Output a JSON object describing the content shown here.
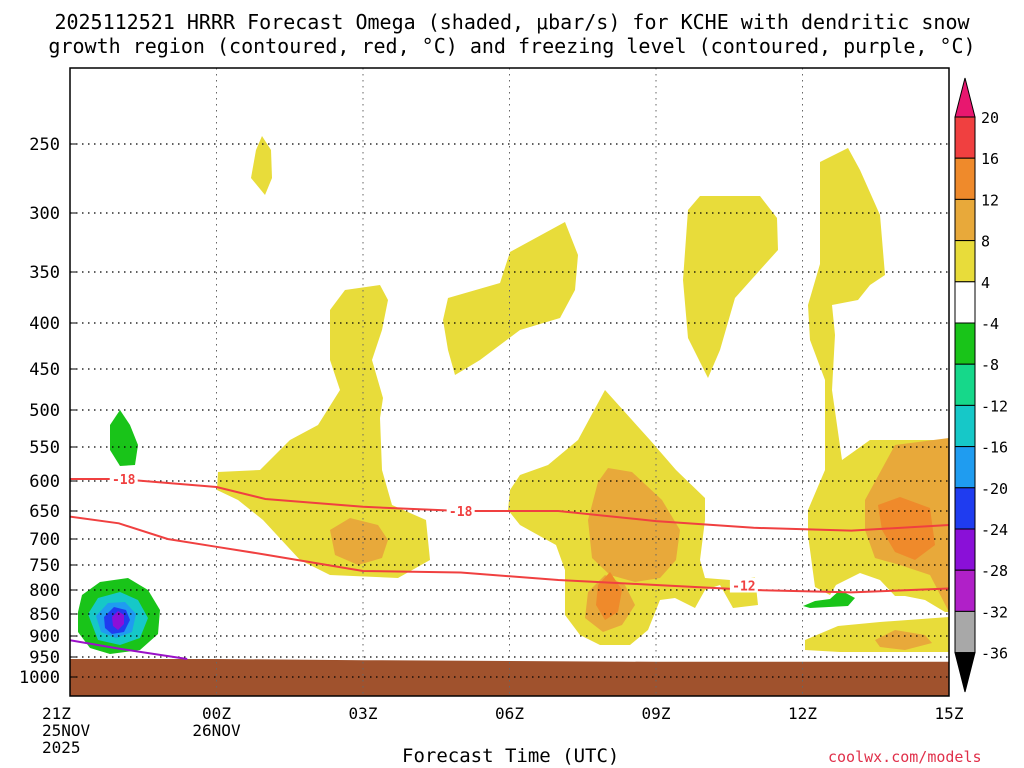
{
  "title": {
    "line1": "2025112521 HRRR Forecast Omega (shaded, μbar/s) for KCHE with dendritic snow",
    "line2": "growth region (contoured, red, °C) and freezing level (contoured, purple, °C)"
  },
  "xlabel": "Forecast Time (UTC)",
  "credit": "coolwx.com/models",
  "chart_data": {
    "type": "heatmap",
    "title": "2025112521 HRRR Forecast Omega (shaded, μbar/s) for KCHE with dendritic snow growth region (contoured, red, °C) and freezing level (contoured, purple, °C)",
    "xlabel": "Forecast Time (UTC)",
    "ylabel": "",
    "x_range_hours": [
      0,
      18
    ],
    "x_ticks": [
      {
        "h": 0,
        "lines": [
          "21Z",
          "25NOV",
          "2025"
        ]
      },
      {
        "h": 3,
        "lines": [
          "00Z",
          "26NOV"
        ]
      },
      {
        "h": 6,
        "lines": [
          "03Z"
        ]
      },
      {
        "h": 9,
        "lines": [
          "06Z"
        ]
      },
      {
        "h": 12,
        "lines": [
          "09Z"
        ]
      },
      {
        "h": 15,
        "lines": [
          "12Z"
        ]
      },
      {
        "h": 18,
        "lines": [
          "15Z"
        ]
      }
    ],
    "y_scale": "pressure (log-like, inverted)",
    "y_ticks": [
      250,
      300,
      350,
      400,
      450,
      500,
      550,
      600,
      650,
      700,
      750,
      800,
      850,
      900,
      950,
      1000
    ],
    "grid": true,
    "colorbar": {
      "ticks": [
        "20",
        "16",
        "12",
        "8",
        "4",
        "-4",
        "-8",
        "-12",
        "-16",
        "-20",
        "-24",
        "-28",
        "-32",
        "-36"
      ],
      "colors": [
        "#e8176f",
        "#f04040",
        "#ef8a2b",
        "#e8a93a",
        "#e8dc3a",
        "#ffffff",
        "#19c419",
        "#16d88a",
        "#16c8c8",
        "#1f9cf0",
        "#1f3cf0",
        "#8a10d8",
        "#b020c8",
        "#a8a8a8",
        "#000000"
      ]
    },
    "omega_regions": [
      {
        "level": "4 to 8",
        "color": "#e8dc3a",
        "description": "upward motion areas, yellow"
      },
      {
        "level": "8 to 12",
        "color": "#e8a93a",
        "description": "moderate, orange"
      },
      {
        "level": "12 to 16",
        "color": "#ef8a2b",
        "description": "strong, dark orange"
      },
      {
        "level": "-4 to -8",
        "color": "#19c419",
        "description": "sinking, green"
      },
      {
        "level": "-16 to -24",
        "color": "#1f9cf0",
        "description": "strong sinking, blue"
      }
    ],
    "contours": [
      {
        "label": "-18",
        "color": "#f04040",
        "points_hours_hPa": [
          [
            0,
            597
          ],
          [
            1,
            597
          ],
          [
            3,
            610
          ],
          [
            4,
            630
          ],
          [
            6,
            643
          ],
          [
            8,
            650
          ],
          [
            10,
            650
          ],
          [
            12,
            668
          ],
          [
            14,
            680
          ],
          [
            16,
            685
          ],
          [
            18,
            675
          ]
        ]
      },
      {
        "label": "-12",
        "color": "#f04040",
        "points_hours_hPa": [
          [
            0,
            660
          ],
          [
            1,
            672
          ],
          [
            2,
            700
          ],
          [
            3,
            715
          ],
          [
            4,
            730
          ],
          [
            6,
            762
          ],
          [
            8,
            765
          ],
          [
            10,
            780
          ],
          [
            12,
            790
          ],
          [
            14,
            800
          ],
          [
            16,
            805
          ],
          [
            18,
            797
          ]
        ]
      },
      {
        "label": "freezing level",
        "color": "#9a10c8",
        "points_hours_hPa": [
          [
            0,
            910
          ],
          [
            1,
            930
          ],
          [
            2.4,
            955
          ]
        ]
      }
    ],
    "terrain_hPa": [
      955,
      955,
      958,
      960,
      962,
      962,
      962
    ]
  }
}
